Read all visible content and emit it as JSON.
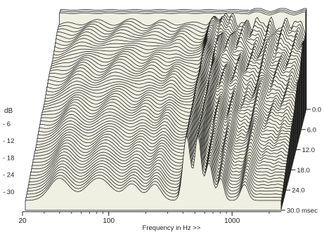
{
  "chart_data": {
    "type": "waterfall",
    "title": "",
    "xlabel": "Frequency in Hz >>",
    "ylabel": "dB",
    "x_scale": "log",
    "xlim": [
      20,
      2500
    ],
    "x_ticks": [
      {
        "value": 20,
        "label": "20"
      },
      {
        "value": 100,
        "label": "100"
      },
      {
        "value": 1000,
        "label": "1000"
      }
    ],
    "y_ticks": [
      {
        "value": -6,
        "label": "- 6"
      },
      {
        "value": -12,
        "label": "- 12"
      },
      {
        "value": -18,
        "label": "- 18"
      },
      {
        "value": -24,
        "label": "- 24"
      },
      {
        "value": -30,
        "label": "- 30"
      }
    ],
    "ylim": [
      -36,
      0
    ],
    "z_label_unit": "msec",
    "z_ticks": [
      {
        "value": 0,
        "label": "0.0"
      },
      {
        "value": 6,
        "label": "6.0"
      },
      {
        "value": 12,
        "label": "12.0"
      },
      {
        "value": 18,
        "label": "18.0"
      },
      {
        "value": 24,
        "label": "24.0"
      },
      {
        "value": 30,
        "label": "30.0 msec"
      }
    ],
    "zlim": [
      0,
      30
    ],
    "slice_count": 60,
    "colors": {
      "fill": "#f0f0e2",
      "line": "#1a1a1a"
    }
  }
}
